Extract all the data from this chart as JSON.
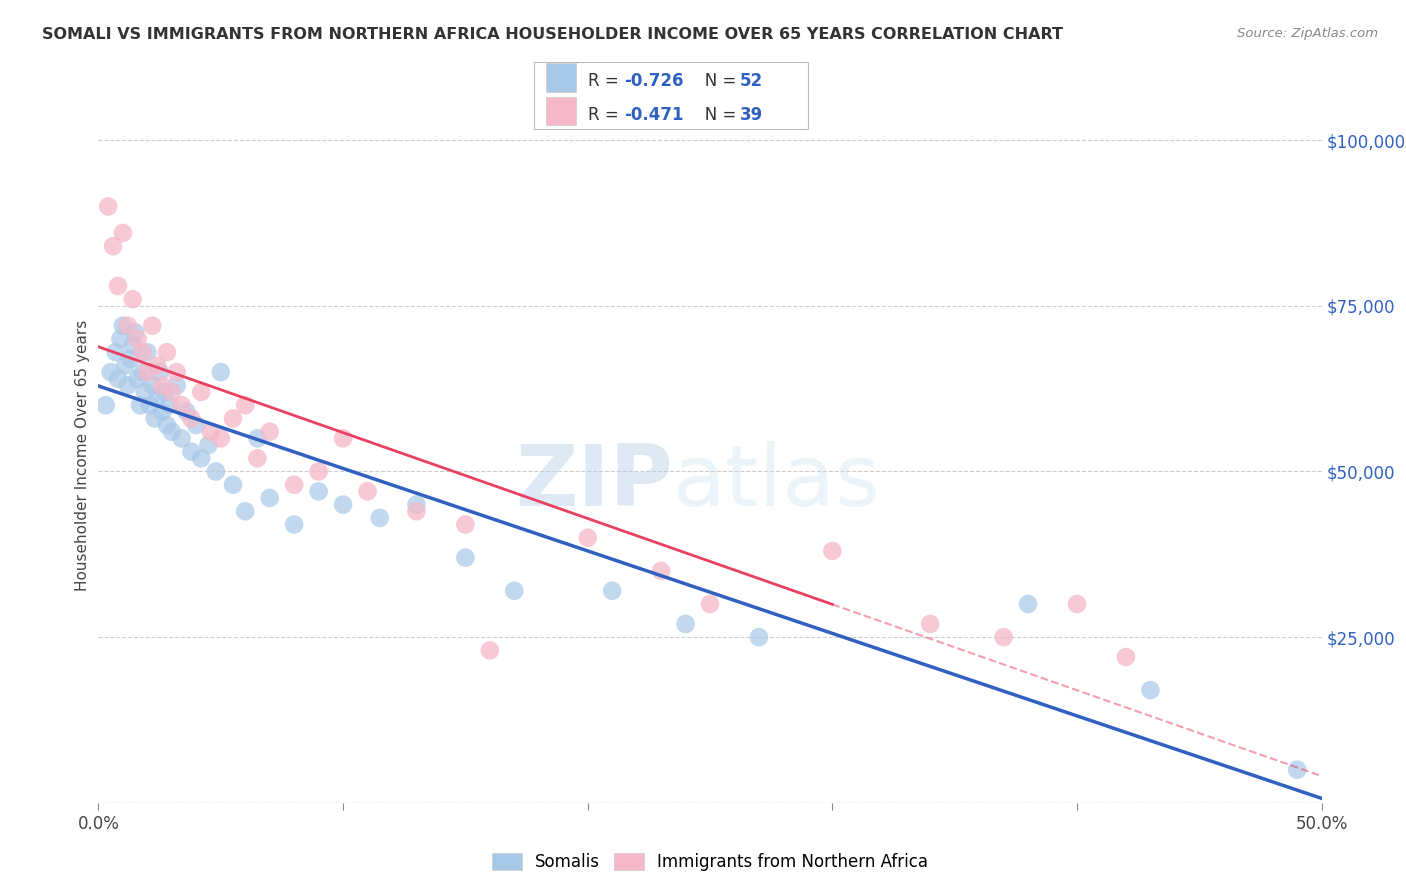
{
  "title": "SOMALI VS IMMIGRANTS FROM NORTHERN AFRICA HOUSEHOLDER INCOME OVER 65 YEARS CORRELATION CHART",
  "source": "Source: ZipAtlas.com",
  "ylabel": "Householder Income Over 65 years",
  "xlim": [
    0,
    0.5
  ],
  "ylim": [
    0,
    105000
  ],
  "ytick_vals": [
    0,
    25000,
    50000,
    75000,
    100000
  ],
  "ytick_labels": [
    "",
    "$25,000",
    "$50,000",
    "$75,000",
    "$100,000"
  ],
  "blue_color": "#a8c8e8",
  "pink_color": "#f4b8c8",
  "blue_line_color": "#3060c0",
  "pink_line_color": "#e84060",
  "somali_R": "-0.726",
  "somali_N": "52",
  "northern_africa_R": "-0.471",
  "northern_africa_N": "39",
  "watermark_zip": "ZIP",
  "watermark_atlas": "atlas",
  "somali_scatter_x": [
    0.003,
    0.005,
    0.007,
    0.008,
    0.009,
    0.01,
    0.011,
    0.012,
    0.013,
    0.014,
    0.015,
    0.016,
    0.017,
    0.018,
    0.019,
    0.02,
    0.021,
    0.022,
    0.023,
    0.024,
    0.025,
    0.026,
    0.027,
    0.028,
    0.029,
    0.03,
    0.032,
    0.034,
    0.036,
    0.038,
    0.04,
    0.042,
    0.045,
    0.048,
    0.05,
    0.055,
    0.06,
    0.065,
    0.07,
    0.08,
    0.09,
    0.1,
    0.115,
    0.13,
    0.15,
    0.17,
    0.21,
    0.24,
    0.27,
    0.38,
    0.43,
    0.49
  ],
  "somali_scatter_y": [
    60000,
    65000,
    68000,
    64000,
    70000,
    72000,
    66000,
    63000,
    67000,
    69000,
    71000,
    64000,
    60000,
    65000,
    62000,
    68000,
    60000,
    63000,
    58000,
    61000,
    65000,
    59000,
    62000,
    57000,
    60000,
    56000,
    63000,
    55000,
    59000,
    53000,
    57000,
    52000,
    54000,
    50000,
    65000,
    48000,
    44000,
    55000,
    46000,
    42000,
    47000,
    45000,
    43000,
    45000,
    37000,
    32000,
    32000,
    27000,
    25000,
    30000,
    17000,
    5000
  ],
  "northern_africa_scatter_x": [
    0.004,
    0.006,
    0.008,
    0.01,
    0.012,
    0.014,
    0.016,
    0.018,
    0.02,
    0.022,
    0.024,
    0.026,
    0.028,
    0.03,
    0.032,
    0.034,
    0.038,
    0.042,
    0.046,
    0.05,
    0.055,
    0.06,
    0.065,
    0.07,
    0.08,
    0.09,
    0.1,
    0.11,
    0.13,
    0.15,
    0.16,
    0.2,
    0.23,
    0.25,
    0.3,
    0.34,
    0.37,
    0.4,
    0.42
  ],
  "northern_africa_scatter_y": [
    90000,
    84000,
    78000,
    86000,
    72000,
    76000,
    70000,
    68000,
    65000,
    72000,
    66000,
    63000,
    68000,
    62000,
    65000,
    60000,
    58000,
    62000,
    56000,
    55000,
    58000,
    60000,
    52000,
    56000,
    48000,
    50000,
    55000,
    47000,
    44000,
    42000,
    23000,
    40000,
    35000,
    30000,
    38000,
    27000,
    25000,
    30000,
    22000
  ]
}
